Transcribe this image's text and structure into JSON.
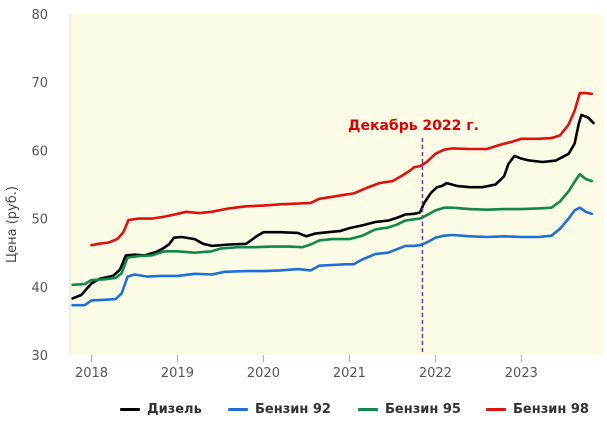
{
  "chart_data": {
    "type": "line",
    "title": "",
    "xlabel": "",
    "ylabel": "Цена (руб.)",
    "ylim": [
      30,
      80
    ],
    "xlim": [
      2017.75,
      2023.95
    ],
    "yticks": [
      30,
      40,
      50,
      60,
      70,
      80
    ],
    "xticks": [
      {
        "value": 2018,
        "label": "2018"
      },
      {
        "value": 2019,
        "label": "2019"
      },
      {
        "value": 2020,
        "label": "2020"
      },
      {
        "value": 2021,
        "label": "2021"
      },
      {
        "value": 2022,
        "label": "2022"
      },
      {
        "value": 2023,
        "label": "2023"
      }
    ],
    "grid": false,
    "background_color": "#fbfbe6",
    "legend_position": "bottom",
    "annotation": {
      "text": "Декабрь 2022 г.",
      "x": 2021.85,
      "color": "#dd0000",
      "line_color": "#6a3fa0"
    },
    "series": [
      {
        "name": "Дизель",
        "color": "#000000",
        "points": [
          [
            2017.78,
            38.3
          ],
          [
            2017.88,
            38.8
          ],
          [
            2018.0,
            40.5
          ],
          [
            2018.1,
            41.2
          ],
          [
            2018.25,
            41.6
          ],
          [
            2018.33,
            42.5
          ],
          [
            2018.4,
            44.6
          ],
          [
            2018.5,
            44.7
          ],
          [
            2018.62,
            44.6
          ],
          [
            2018.75,
            45.1
          ],
          [
            2018.83,
            45.6
          ],
          [
            2018.9,
            46.2
          ],
          [
            2018.96,
            47.2
          ],
          [
            2019.05,
            47.3
          ],
          [
            2019.2,
            47.0
          ],
          [
            2019.3,
            46.3
          ],
          [
            2019.4,
            46.0
          ],
          [
            2019.6,
            46.2
          ],
          [
            2019.8,
            46.3
          ],
          [
            2019.92,
            47.4
          ],
          [
            2020.0,
            48.0
          ],
          [
            2020.2,
            48.0
          ],
          [
            2020.4,
            47.9
          ],
          [
            2020.5,
            47.4
          ],
          [
            2020.6,
            47.8
          ],
          [
            2020.75,
            48.0
          ],
          [
            2020.9,
            48.2
          ],
          [
            2021.0,
            48.6
          ],
          [
            2021.15,
            49.0
          ],
          [
            2021.3,
            49.5
          ],
          [
            2021.45,
            49.7
          ],
          [
            2021.55,
            50.1
          ],
          [
            2021.65,
            50.6
          ],
          [
            2021.75,
            50.7
          ],
          [
            2021.82,
            50.9
          ],
          [
            2021.87,
            52.3
          ],
          [
            2021.95,
            53.8
          ],
          [
            2022.02,
            54.6
          ],
          [
            2022.08,
            54.8
          ],
          [
            2022.13,
            55.2
          ],
          [
            2022.25,
            54.8
          ],
          [
            2022.4,
            54.6
          ],
          [
            2022.55,
            54.6
          ],
          [
            2022.7,
            55.0
          ],
          [
            2022.8,
            56.2
          ],
          [
            2022.85,
            58.0
          ],
          [
            2022.92,
            59.2
          ],
          [
            2023.0,
            58.8
          ],
          [
            2023.1,
            58.5
          ],
          [
            2023.25,
            58.3
          ],
          [
            2023.4,
            58.5
          ],
          [
            2023.55,
            59.5
          ],
          [
            2023.62,
            61.0
          ],
          [
            2023.67,
            64.0
          ],
          [
            2023.7,
            65.2
          ],
          [
            2023.78,
            64.8
          ],
          [
            2023.84,
            64.0
          ]
        ]
      },
      {
        "name": "Бензин 92",
        "color": "#1f6fd6",
        "points": [
          [
            2017.78,
            37.3
          ],
          [
            2017.92,
            37.3
          ],
          [
            2018.0,
            38.0
          ],
          [
            2018.15,
            38.1
          ],
          [
            2018.28,
            38.2
          ],
          [
            2018.35,
            39.0
          ],
          [
            2018.42,
            41.5
          ],
          [
            2018.5,
            41.8
          ],
          [
            2018.65,
            41.5
          ],
          [
            2018.8,
            41.6
          ],
          [
            2019.0,
            41.6
          ],
          [
            2019.2,
            41.9
          ],
          [
            2019.4,
            41.8
          ],
          [
            2019.55,
            42.2
          ],
          [
            2019.8,
            42.3
          ],
          [
            2020.0,
            42.3
          ],
          [
            2020.2,
            42.4
          ],
          [
            2020.4,
            42.6
          ],
          [
            2020.55,
            42.4
          ],
          [
            2020.65,
            43.1
          ],
          [
            2020.8,
            43.2
          ],
          [
            2020.95,
            43.3
          ],
          [
            2021.05,
            43.3
          ],
          [
            2021.15,
            44.0
          ],
          [
            2021.3,
            44.8
          ],
          [
            2021.45,
            45.0
          ],
          [
            2021.55,
            45.5
          ],
          [
            2021.65,
            46.0
          ],
          [
            2021.75,
            46.0
          ],
          [
            2021.82,
            46.1
          ],
          [
            2021.9,
            46.5
          ],
          [
            2022.0,
            47.2
          ],
          [
            2022.1,
            47.5
          ],
          [
            2022.2,
            47.6
          ],
          [
            2022.4,
            47.4
          ],
          [
            2022.6,
            47.3
          ],
          [
            2022.8,
            47.4
          ],
          [
            2023.0,
            47.3
          ],
          [
            2023.2,
            47.3
          ],
          [
            2023.35,
            47.5
          ],
          [
            2023.45,
            48.5
          ],
          [
            2023.55,
            50.0
          ],
          [
            2023.62,
            51.2
          ],
          [
            2023.68,
            51.6
          ],
          [
            2023.75,
            51.0
          ],
          [
            2023.82,
            50.7
          ]
        ]
      },
      {
        "name": "Бензин 95",
        "color": "#11884a",
        "points": [
          [
            2017.78,
            40.3
          ],
          [
            2017.92,
            40.4
          ],
          [
            2018.0,
            41.0
          ],
          [
            2018.15,
            41.1
          ],
          [
            2018.28,
            41.3
          ],
          [
            2018.35,
            42.0
          ],
          [
            2018.42,
            44.3
          ],
          [
            2018.55,
            44.5
          ],
          [
            2018.7,
            44.6
          ],
          [
            2018.85,
            45.2
          ],
          [
            2019.0,
            45.2
          ],
          [
            2019.2,
            45.0
          ],
          [
            2019.4,
            45.2
          ],
          [
            2019.5,
            45.6
          ],
          [
            2019.7,
            45.8
          ],
          [
            2019.9,
            45.8
          ],
          [
            2020.1,
            45.9
          ],
          [
            2020.3,
            45.9
          ],
          [
            2020.45,
            45.8
          ],
          [
            2020.55,
            46.2
          ],
          [
            2020.65,
            46.8
          ],
          [
            2020.8,
            47.0
          ],
          [
            2021.0,
            47.0
          ],
          [
            2021.15,
            47.5
          ],
          [
            2021.3,
            48.4
          ],
          [
            2021.45,
            48.7
          ],
          [
            2021.55,
            49.1
          ],
          [
            2021.65,
            49.7
          ],
          [
            2021.75,
            49.9
          ],
          [
            2021.82,
            50.0
          ],
          [
            2021.9,
            50.5
          ],
          [
            2022.0,
            51.2
          ],
          [
            2022.1,
            51.6
          ],
          [
            2022.2,
            51.6
          ],
          [
            2022.4,
            51.4
          ],
          [
            2022.6,
            51.3
          ],
          [
            2022.8,
            51.4
          ],
          [
            2023.0,
            51.4
          ],
          [
            2023.2,
            51.5
          ],
          [
            2023.35,
            51.6
          ],
          [
            2023.45,
            52.5
          ],
          [
            2023.55,
            54.0
          ],
          [
            2023.62,
            55.4
          ],
          [
            2023.68,
            56.5
          ],
          [
            2023.75,
            55.8
          ],
          [
            2023.82,
            55.5
          ]
        ]
      },
      {
        "name": "Бензин 98",
        "color": "#e01010",
        "points": [
          [
            2018.0,
            46.1
          ],
          [
            2018.08,
            46.3
          ],
          [
            2018.2,
            46.5
          ],
          [
            2018.3,
            47.0
          ],
          [
            2018.37,
            48.0
          ],
          [
            2018.43,
            49.8
          ],
          [
            2018.55,
            50.0
          ],
          [
            2018.7,
            50.0
          ],
          [
            2018.85,
            50.3
          ],
          [
            2019.0,
            50.7
          ],
          [
            2019.1,
            51.0
          ],
          [
            2019.25,
            50.8
          ],
          [
            2019.4,
            51.0
          ],
          [
            2019.6,
            51.5
          ],
          [
            2019.8,
            51.8
          ],
          [
            2020.0,
            51.9
          ],
          [
            2020.2,
            52.1
          ],
          [
            2020.4,
            52.2
          ],
          [
            2020.55,
            52.3
          ],
          [
            2020.65,
            52.9
          ],
          [
            2020.8,
            53.2
          ],
          [
            2020.95,
            53.5
          ],
          [
            2021.05,
            53.7
          ],
          [
            2021.2,
            54.5
          ],
          [
            2021.35,
            55.2
          ],
          [
            2021.5,
            55.5
          ],
          [
            2021.6,
            56.2
          ],
          [
            2021.7,
            57.0
          ],
          [
            2021.75,
            57.5
          ],
          [
            2021.82,
            57.7
          ],
          [
            2021.9,
            58.3
          ],
          [
            2022.0,
            59.5
          ],
          [
            2022.1,
            60.1
          ],
          [
            2022.2,
            60.3
          ],
          [
            2022.4,
            60.2
          ],
          [
            2022.6,
            60.2
          ],
          [
            2022.75,
            60.8
          ],
          [
            2022.9,
            61.3
          ],
          [
            2023.0,
            61.7
          ],
          [
            2023.2,
            61.7
          ],
          [
            2023.35,
            61.8
          ],
          [
            2023.45,
            62.2
          ],
          [
            2023.55,
            63.8
          ],
          [
            2023.62,
            65.8
          ],
          [
            2023.68,
            68.4
          ],
          [
            2023.75,
            68.4
          ],
          [
            2023.82,
            68.3
          ]
        ]
      }
    ]
  }
}
